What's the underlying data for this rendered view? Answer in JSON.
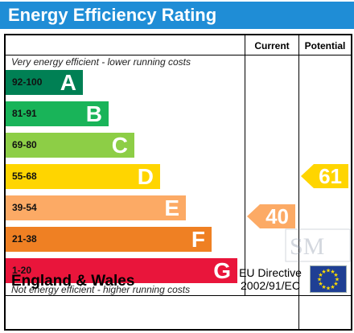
{
  "title": "Energy Efficiency Rating",
  "columns": {
    "current": "Current",
    "potential": "Potential"
  },
  "top_note": "Very energy efficient - lower running costs",
  "bottom_note": "Not energy efficient - higher running costs",
  "bands": [
    {
      "range": "92-100",
      "letter": "A",
      "color": "#008054"
    },
    {
      "range": "81-91",
      "letter": "B",
      "color": "#19b459"
    },
    {
      "range": "69-80",
      "letter": "C",
      "color": "#8dce46"
    },
    {
      "range": "55-68",
      "letter": "D",
      "color": "#ffd500"
    },
    {
      "range": "39-54",
      "letter": "E",
      "color": "#fcaa65"
    },
    {
      "range": "21-38",
      "letter": "F",
      "color": "#ef8023"
    },
    {
      "range": "1-20",
      "letter": "G",
      "color": "#e9153b"
    }
  ],
  "current": {
    "value": "40",
    "band": "E",
    "color": "#fcaa65"
  },
  "potential": {
    "value": "61",
    "band": "D",
    "color": "#ffd500"
  },
  "footer": {
    "region": "England & Wales",
    "directive_line1": "EU Directive",
    "directive_line2": "2002/91/EC"
  },
  "watermark_text": "SM",
  "colors": {
    "title_bar": "#1f8dd6",
    "eu_flag": "#1f3f94",
    "eu_stars": "#ffdd00"
  },
  "icons": {
    "flag": "eu-flag-icon",
    "watermark": "company-logo-watermark"
  }
}
